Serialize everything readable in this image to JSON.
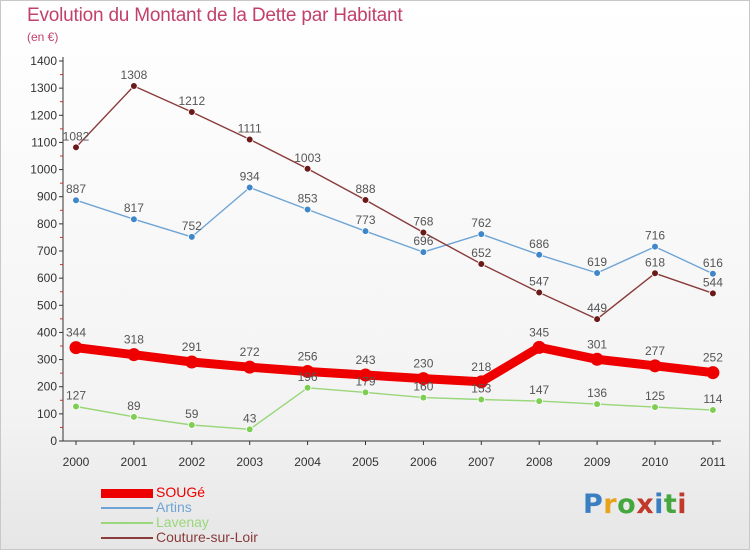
{
  "header": {
    "title": "Evolution du Montant de la Dette par Habitant",
    "subtitle": "(en €)"
  },
  "logo": {
    "text": "Proxiti",
    "letter_colors": [
      "#3a7fc1",
      "#e8a31d",
      "#47a73f",
      "#c0392b",
      "#3a7fc1",
      "#47a73f",
      "#c0392b"
    ]
  },
  "colors": {
    "title": "#c2416a",
    "axis": "#333333",
    "grid": "#dddddd",
    "tick_label": "#333333",
    "data_label": "#555555"
  },
  "chart_data": {
    "type": "line",
    "title": "Evolution du Montant de la Dette par Habitant",
    "subtitle": "(en €)",
    "x": [
      "2000",
      "2001",
      "2002",
      "2003",
      "2004",
      "2005",
      "2006",
      "2007",
      "2008",
      "2009",
      "2010",
      "2011"
    ],
    "ylim": [
      0,
      1400
    ],
    "yticks": [
      0,
      100,
      200,
      300,
      400,
      500,
      600,
      700,
      800,
      900,
      1000,
      1100,
      1200,
      1300,
      1400
    ],
    "grid": false,
    "legend_position": "bottom-left",
    "series": [
      {
        "name": "SOUGé",
        "color": "#ee0000",
        "marker": "#ee0000",
        "emphasis": true,
        "values": [
          344,
          318,
          291,
          272,
          256,
          243,
          230,
          218,
          345,
          301,
          277,
          252
        ]
      },
      {
        "name": "Artins",
        "color": "#6fa4d4",
        "marker": "#3f87c9",
        "emphasis": false,
        "values": [
          887,
          817,
          752,
          934,
          853,
          773,
          696,
          762,
          686,
          619,
          716,
          616
        ]
      },
      {
        "name": "Lavenay",
        "color": "#9ad67a",
        "marker": "#7fce54",
        "emphasis": false,
        "values": [
          127,
          89,
          59,
          43,
          196,
          179,
          160,
          153,
          147,
          136,
          125,
          114
        ]
      },
      {
        "name": "Couture-sur-Loir",
        "color": "#8a3b3b",
        "marker": "#6b1a1a",
        "emphasis": false,
        "values": [
          1082,
          1308,
          1212,
          1111,
          1003,
          888,
          768,
          652,
          547,
          449,
          618,
          544
        ]
      }
    ]
  }
}
